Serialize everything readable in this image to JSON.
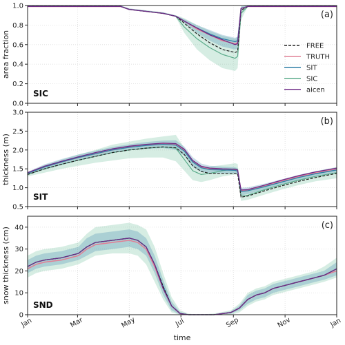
{
  "chart_data": {
    "type": "line",
    "xlabel": "time",
    "x_tick_labels": [
      "Jan",
      "Mar",
      "May",
      "Jul",
      "Sep",
      "Nov",
      "Jan"
    ],
    "x_tick_days": [
      0,
      59,
      120,
      181,
      243,
      304,
      365
    ],
    "xlim": [
      0,
      365
    ],
    "legend": {
      "placement": "right",
      "entries": [
        {
          "name": "FREE",
          "color": "#222222",
          "dashed": true
        },
        {
          "name": "TRUTH",
          "color": "#e08096",
          "dashed": false
        },
        {
          "name": "SIT",
          "color": "#2f7ea6",
          "dashed": false
        },
        {
          "name": "SIC",
          "color": "#5aab8a",
          "dashed": false
        },
        {
          "name": "aicen",
          "color": "#6e2a86",
          "dashed": false
        }
      ]
    },
    "panels": [
      {
        "tag": "(a)",
        "name": "SIC",
        "ylabel": "area fraction",
        "ylim": [
          0.0,
          1.0
        ],
        "y_ticks": [
          "0.0",
          "0.2",
          "0.4",
          "0.6",
          "0.8",
          "1.0"
        ],
        "y_tick_values": [
          0,
          0.2,
          0.4,
          0.6,
          0.8,
          1.0
        ],
        "day": [
          0,
          20,
          40,
          60,
          80,
          100,
          110,
          120,
          140,
          160,
          175,
          185,
          200,
          215,
          230,
          245,
          248,
          252,
          260,
          280,
          300,
          320,
          340,
          365
        ],
        "series": [
          {
            "name": "TRUTH",
            "values": [
              0.99,
              0.99,
              0.99,
              0.99,
              0.99,
              0.99,
              0.99,
              0.96,
              0.94,
              0.92,
              0.89,
              0.84,
              0.76,
              0.7,
              0.64,
              0.61,
              0.62,
              0.97,
              0.99,
              0.99,
              0.99,
              0.99,
              0.99,
              0.99
            ]
          },
          {
            "name": "SIT",
            "values": [
              0.99,
              0.99,
              0.99,
              0.99,
              0.99,
              0.99,
              0.99,
              0.96,
              0.94,
              0.92,
              0.89,
              0.84,
              0.77,
              0.71,
              0.66,
              0.63,
              0.64,
              0.97,
              0.99,
              0.99,
              0.99,
              0.99,
              0.99,
              0.99
            ]
          },
          {
            "name": "SIC",
            "values": [
              0.99,
              0.99,
              0.99,
              0.99,
              0.99,
              0.99,
              0.99,
              0.96,
              0.94,
              0.92,
              0.89,
              0.78,
              0.66,
              0.57,
              0.5,
              0.46,
              0.48,
              0.92,
              0.99,
              0.99,
              0.99,
              0.99,
              0.99,
              0.99
            ]
          },
          {
            "name": "aicen",
            "values": [
              0.99,
              0.99,
              0.99,
              0.99,
              0.99,
              0.99,
              0.99,
              0.96,
              0.94,
              0.92,
              0.89,
              0.84,
              0.77,
              0.7,
              0.65,
              0.6,
              0.61,
              0.97,
              0.99,
              0.99,
              0.99,
              0.99,
              0.99,
              0.99
            ]
          },
          {
            "name": "FREE",
            "values": [
              0.99,
              0.99,
              0.99,
              0.99,
              0.99,
              0.99,
              0.99,
              0.96,
              0.94,
              0.92,
              0.89,
              0.82,
              0.71,
              0.62,
              0.55,
              0.52,
              0.53,
              0.95,
              0.99,
              0.99,
              0.99,
              0.99,
              0.99,
              0.99
            ]
          }
        ],
        "bands": [
          {
            "name": "SIC",
            "lower": [
              0.99,
              0.99,
              0.99,
              0.99,
              0.99,
              0.99,
              0.99,
              0.96,
              0.94,
              0.92,
              0.88,
              0.72,
              0.55,
              0.44,
              0.36,
              0.33,
              0.36,
              0.85,
              0.99,
              0.99,
              0.99,
              0.99,
              0.99,
              0.99
            ],
            "upper": [
              1.0,
              1.0,
              1.0,
              1.0,
              1.0,
              1.0,
              1.0,
              0.97,
              0.95,
              0.93,
              0.9,
              0.87,
              0.8,
              0.74,
              0.69,
              0.66,
              0.68,
              0.99,
              1.0,
              1.0,
              1.0,
              1.0,
              1.0,
              1.0
            ]
          },
          {
            "name": "SIT",
            "lower": [
              0.99,
              0.99,
              0.99,
              0.99,
              0.99,
              0.99,
              0.99,
              0.96,
              0.94,
              0.92,
              0.89,
              0.82,
              0.72,
              0.64,
              0.58,
              0.55,
              0.56,
              0.94,
              0.99,
              0.99,
              0.99,
              0.99,
              0.99,
              0.99
            ],
            "upper": [
              1.0,
              1.0,
              1.0,
              1.0,
              1.0,
              1.0,
              1.0,
              0.97,
              0.95,
              0.93,
              0.9,
              0.86,
              0.8,
              0.75,
              0.7,
              0.67,
              0.68,
              0.99,
              1.0,
              1.0,
              1.0,
              1.0,
              1.0,
              1.0
            ]
          }
        ]
      },
      {
        "tag": "(b)",
        "name": "SIT",
        "ylabel": "thickness (m)",
        "ylim": [
          0.5,
          3.0
        ],
        "y_ticks": [
          "0.5",
          "1.0",
          "1.5",
          "2.0",
          "2.5",
          "3.0"
        ],
        "y_tick_values": [
          0.5,
          1.0,
          1.5,
          2.0,
          2.5,
          3.0
        ],
        "day": [
          0,
          20,
          40,
          60,
          80,
          100,
          120,
          140,
          160,
          175,
          185,
          195,
          205,
          215,
          230,
          245,
          248,
          252,
          260,
          280,
          300,
          320,
          340,
          365
        ],
        "series": [
          {
            "name": "TRUTH",
            "values": [
              1.38,
              1.55,
              1.68,
              1.8,
              1.9,
              2.0,
              2.08,
              2.13,
              2.16,
              2.15,
              2.0,
              1.7,
              1.55,
              1.5,
              1.48,
              1.47,
              1.45,
              0.92,
              0.93,
              1.05,
              1.18,
              1.3,
              1.4,
              1.5
            ]
          },
          {
            "name": "SIT",
            "values": [
              1.38,
              1.55,
              1.68,
              1.8,
              1.9,
              2.0,
              2.07,
              2.12,
              2.15,
              2.13,
              1.97,
              1.68,
              1.53,
              1.48,
              1.47,
              1.46,
              1.44,
              0.9,
              0.92,
              1.03,
              1.15,
              1.27,
              1.37,
              1.47
            ]
          },
          {
            "name": "SIC",
            "values": [
              1.35,
              1.5,
              1.62,
              1.73,
              1.83,
              1.93,
              2.0,
              2.05,
              2.08,
              2.05,
              1.75,
              1.45,
              1.35,
              1.38,
              1.45,
              1.5,
              1.48,
              0.78,
              0.8,
              0.95,
              1.08,
              1.2,
              1.3,
              1.4
            ]
          },
          {
            "name": "aicen",
            "values": [
              1.4,
              1.57,
              1.7,
              1.82,
              1.93,
              2.03,
              2.1,
              2.15,
              2.18,
              2.17,
              2.02,
              1.72,
              1.57,
              1.52,
              1.5,
              1.49,
              1.47,
              0.94,
              0.95,
              1.07,
              1.2,
              1.32,
              1.42,
              1.52
            ]
          },
          {
            "name": "FREE",
            "values": [
              1.35,
              1.5,
              1.62,
              1.73,
              1.83,
              1.93,
              2.0,
              2.05,
              2.08,
              2.06,
              1.88,
              1.58,
              1.43,
              1.38,
              1.38,
              1.38,
              1.37,
              0.75,
              0.78,
              0.92,
              1.05,
              1.17,
              1.27,
              1.38
            ]
          }
        ],
        "bands": [
          {
            "name": "SIC",
            "lower": [
              1.3,
              1.4,
              1.5,
              1.58,
              1.66,
              1.72,
              1.78,
              1.8,
              1.8,
              1.7,
              1.45,
              1.2,
              1.15,
              1.2,
              1.3,
              1.35,
              1.33,
              0.65,
              0.68,
              0.82,
              0.95,
              1.07,
              1.17,
              1.25
            ]
          },
          {
            "name": "SIT",
            "lower": [
              1.34,
              1.48,
              1.6,
              1.72,
              1.82,
              1.92,
              1.99,
              2.03,
              2.05,
              2.0,
              1.85,
              1.55,
              1.42,
              1.38,
              1.38,
              1.38,
              1.36,
              0.8,
              0.83,
              0.95,
              1.08,
              1.2,
              1.3,
              1.4
            ]
          }
        ]
      },
      {
        "tag": "(c)",
        "name": "SND",
        "ylabel": "snow thickness (cm)",
        "ylim": [
          0,
          45
        ],
        "y_ticks": [
          "0",
          "10",
          "20",
          "30",
          "40"
        ],
        "y_tick_values": [
          0,
          10,
          20,
          30,
          40
        ],
        "day": [
          0,
          10,
          20,
          40,
          60,
          70,
          80,
          100,
          120,
          130,
          140,
          150,
          160,
          170,
          180,
          190,
          200,
          220,
          240,
          250,
          260,
          270,
          280,
          290,
          300,
          310,
          320,
          330,
          340,
          350,
          365
        ],
        "series": [
          {
            "name": "TRUTH",
            "values": [
              21,
              23,
              24,
              25,
              27,
              30,
              32,
              33,
              34,
              33,
              30,
              22,
              12,
              4,
              0.5,
              0,
              0,
              0,
              1,
              3,
              7,
              9,
              10,
              12,
              13,
              14,
              15,
              16,
              17,
              18,
              20
            ]
          },
          {
            "name": "SIT",
            "values": [
              22,
              24,
              25,
              26,
              28,
              31,
              33,
              34,
              35,
              34,
              31,
              23,
              13,
              4,
              0.6,
              0,
              0,
              0,
              1,
              3,
              7,
              9,
              10,
              12,
              13,
              14,
              15,
              16,
              17,
              18,
              21
            ]
          },
          {
            "name": "SIC",
            "values": [
              22,
              24,
              25,
              26,
              28,
              31,
              33,
              34,
              35,
              34,
              31,
              23,
              13,
              4,
              0.6,
              0,
              0,
              0,
              1,
              3,
              7,
              9,
              10,
              12,
              13,
              14,
              15,
              16,
              17,
              18,
              21
            ]
          },
          {
            "name": "aicen",
            "values": [
              22,
              24,
              25,
              26,
              28,
              31,
              33,
              34,
              35,
              34,
              31,
              23,
              12,
              4,
              0.5,
              0,
              0,
              0,
              1,
              3,
              7,
              9,
              10,
              12,
              13,
              14,
              15,
              16,
              17,
              18,
              21
            ]
          },
          {
            "name": "FREE",
            "values": [
              22,
              24,
              25,
              26,
              28,
              31,
              33,
              34,
              35,
              34,
              31,
              23,
              13,
              4,
              0.6,
              0,
              0,
              0,
              1,
              3,
              7,
              9,
              10,
              12,
              13,
              14,
              15,
              16,
              17,
              18,
              21
            ]
          }
        ],
        "bands": [
          {
            "name": "SIC",
            "lower": [
              17,
              19,
              20,
              21,
              23,
              25,
              27,
              28,
              28,
              27,
              23,
              15,
              7,
              1,
              0,
              0,
              0,
              0,
              0,
              1,
              4,
              6,
              7,
              9,
              10,
              11,
              12,
              13,
              14,
              15,
              17
            ],
            "upper": [
              27,
              29,
              30,
              31,
              33,
              37,
              40,
              41,
              42,
              41,
              39,
              31,
              19,
              8,
              2,
              0.5,
              0,
              0.5,
              2,
              5,
              10,
              12,
              13,
              15,
              16,
              17,
              18,
              19,
              20,
              22,
              26
            ]
          },
          {
            "name": "SIT",
            "lower": [
              19,
              21,
              22,
              23,
              25,
              27,
              29,
              30,
              31,
              30,
              27,
              19,
              9,
              2,
              0,
              0,
              0,
              0,
              0.5,
              2,
              5,
              7,
              8,
              10,
              11,
              12,
              13,
              14,
              15,
              16,
              18
            ],
            "upper": [
              25,
              27,
              28,
              29,
              31,
              35,
              37,
              38,
              39,
              38,
              35,
              27,
              16,
              6,
              1.2,
              0.2,
              0,
              0.2,
              1.5,
              4,
              9,
              11,
              12,
              14,
              15,
              16,
              17,
              18,
              19,
              20,
              24
            ]
          }
        ]
      }
    ]
  }
}
